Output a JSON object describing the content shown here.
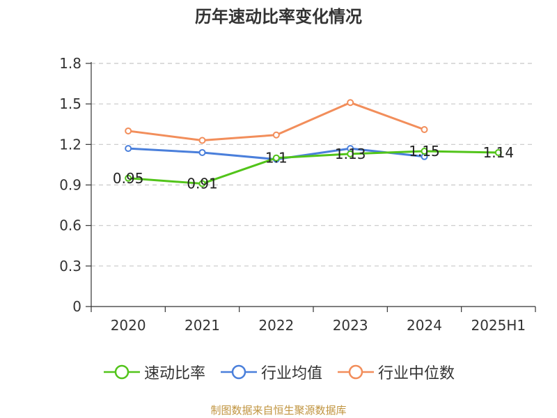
{
  "source_note": "制图数据来自恒生聚源数据库",
  "chart_data": {
    "type": "line",
    "title": "历年速动比率变化情况",
    "categories": [
      "2020",
      "2021",
      "2022",
      "2023",
      "2024",
      "2025H1"
    ],
    "ylim": [
      0,
      1.8
    ],
    "yticks": [
      "0",
      "0.3",
      "0.6",
      "0.9",
      "1.2",
      "1.5",
      "1.8"
    ],
    "grid": true,
    "legend_position": "bottom",
    "series": [
      {
        "name": "速动比率",
        "color": "#52c41a",
        "values": [
          0.95,
          0.91,
          1.1,
          1.13,
          1.15,
          1.14
        ],
        "labels": [
          "0.95",
          "0.91",
          "1.1",
          "1.13",
          "1.15",
          "1.14"
        ]
      },
      {
        "name": "行业均值",
        "color": "#4a7fdb",
        "values": [
          1.17,
          1.14,
          1.09,
          1.17,
          1.11,
          null
        ]
      },
      {
        "name": "行业中位数",
        "color": "#f28e5b",
        "values": [
          1.3,
          1.23,
          1.27,
          1.51,
          1.31,
          null
        ]
      }
    ]
  }
}
